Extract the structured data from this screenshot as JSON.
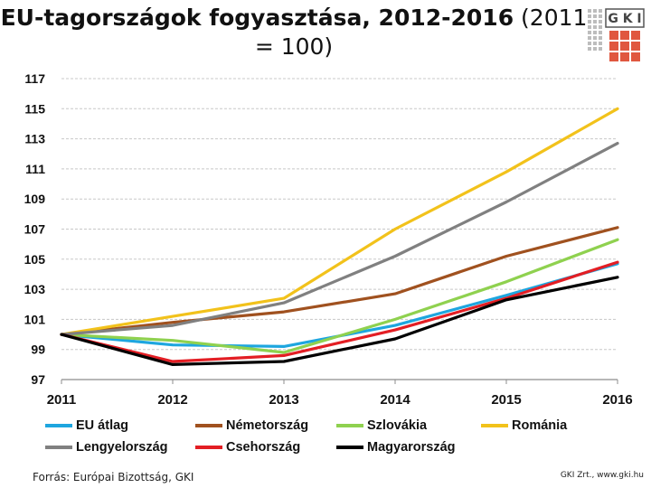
{
  "title": {
    "main": "EU-tagországok fogyasztása, 2012-2016",
    "suffix": " (2011 = 100)"
  },
  "logo": {
    "text": "G K I"
  },
  "colors": {
    "eu": "#1ea6df",
    "nemet": "#a0511f",
    "szlovak": "#8fd14f",
    "roman": "#f2c21b",
    "lengyel": "#808080",
    "cseh": "#e31e24",
    "magyar": "#000000"
  },
  "chart_data": {
    "type": "line",
    "title": "EU-tagországok fogyasztása, 2012-2016 (2011 = 100)",
    "x": [
      "2011",
      "2012",
      "2013",
      "2014",
      "2015",
      "2016"
    ],
    "ylim": [
      97,
      117
    ],
    "yticks": [
      "97",
      "99",
      "101",
      "103",
      "105",
      "107",
      "109",
      "111",
      "113",
      "115",
      "117"
    ],
    "grid": true,
    "legend": "bottom",
    "series": [
      {
        "key": "eu",
        "name": "EU átlag",
        "color": "#1ea6df",
        "values": [
          100,
          99.3,
          99.2,
          100.6,
          102.6,
          104.7
        ]
      },
      {
        "key": "nemet",
        "name": "Németország",
        "color": "#a0511f",
        "values": [
          100,
          100.8,
          101.5,
          102.7,
          105.2,
          107.1
        ]
      },
      {
        "key": "szlovak",
        "name": "Szlovákia",
        "color": "#8fd14f",
        "values": [
          100,
          99.6,
          98.8,
          101,
          103.5,
          106.3
        ]
      },
      {
        "key": "roman",
        "name": "Románia",
        "color": "#f2c21b",
        "values": [
          100,
          101.2,
          102.4,
          107,
          110.8,
          115
        ]
      },
      {
        "key": "lengyel",
        "name": "Lengyelország",
        "color": "#808080",
        "values": [
          100,
          100.6,
          102.1,
          105.2,
          108.8,
          112.7
        ]
      },
      {
        "key": "cseh",
        "name": "Csehország",
        "color": "#e31e24",
        "values": [
          100,
          98.2,
          98.6,
          100.3,
          102.4,
          104.8
        ]
      },
      {
        "key": "magyar",
        "name": "Magyarország",
        "color": "#000000",
        "values": [
          100,
          98,
          98.2,
          99.7,
          102.3,
          103.8
        ]
      }
    ]
  },
  "legend": {
    "items": [
      {
        "label": "EU átlag",
        "color": "#1ea6df"
      },
      {
        "label": "Németország",
        "color": "#a0511f"
      },
      {
        "label": "Szlovákia",
        "color": "#8fd14f"
      },
      {
        "label": "Románia",
        "color": "#f2c21b"
      },
      {
        "label": "Lengyelország",
        "color": "#808080"
      },
      {
        "label": "Csehország",
        "color": "#e31e24"
      },
      {
        "label": "Magyarország",
        "color": "#000000"
      }
    ]
  },
  "footer": {
    "source": "Forrás: Európai Bizottság, GKI",
    "credit": "GKI Zrt., www.gki.hu"
  }
}
